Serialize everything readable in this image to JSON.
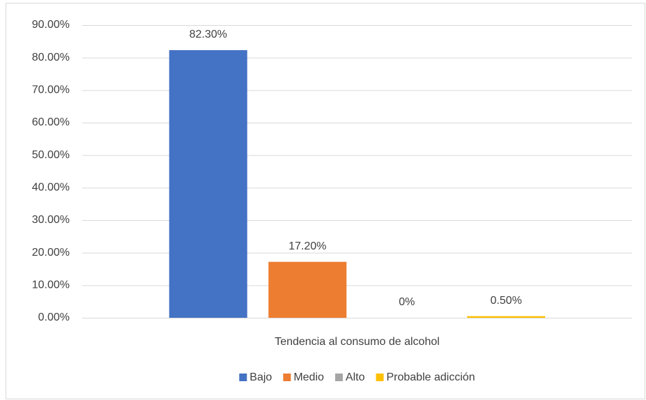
{
  "chart_data": {
    "type": "bar",
    "categories": [
      "Tendencia al consumo de alcohol"
    ],
    "series": [
      {
        "name": "Bajo",
        "color": "#4472c4",
        "values": [
          82.3
        ],
        "value_labels": [
          "82.30%"
        ]
      },
      {
        "name": "Medio",
        "color": "#ed7d31",
        "values": [
          17.2
        ],
        "value_labels": [
          "17.20%"
        ]
      },
      {
        "name": "Alto",
        "color": "#a5a5a5",
        "values": [
          0
        ],
        "value_labels": [
          "0%"
        ]
      },
      {
        "name": "Probable adicción",
        "color": "#ffc000",
        "values": [
          0.5
        ],
        "value_labels": [
          "0.50%"
        ]
      }
    ],
    "ylim": [
      0,
      90
    ],
    "yticks": [
      {
        "value": 0,
        "label": "0.00%"
      },
      {
        "value": 10,
        "label": "10.00%"
      },
      {
        "value": 20,
        "label": "20.00%"
      },
      {
        "value": 30,
        "label": "30.00%"
      },
      {
        "value": 40,
        "label": "40.00%"
      },
      {
        "value": 50,
        "label": "50.00%"
      },
      {
        "value": 60,
        "label": "60.00%"
      },
      {
        "value": 70,
        "label": "70.00%"
      },
      {
        "value": 80,
        "label": "80.00%"
      },
      {
        "value": 90,
        "label": "90.00%"
      }
    ],
    "grid": true,
    "legend": "bottom"
  }
}
